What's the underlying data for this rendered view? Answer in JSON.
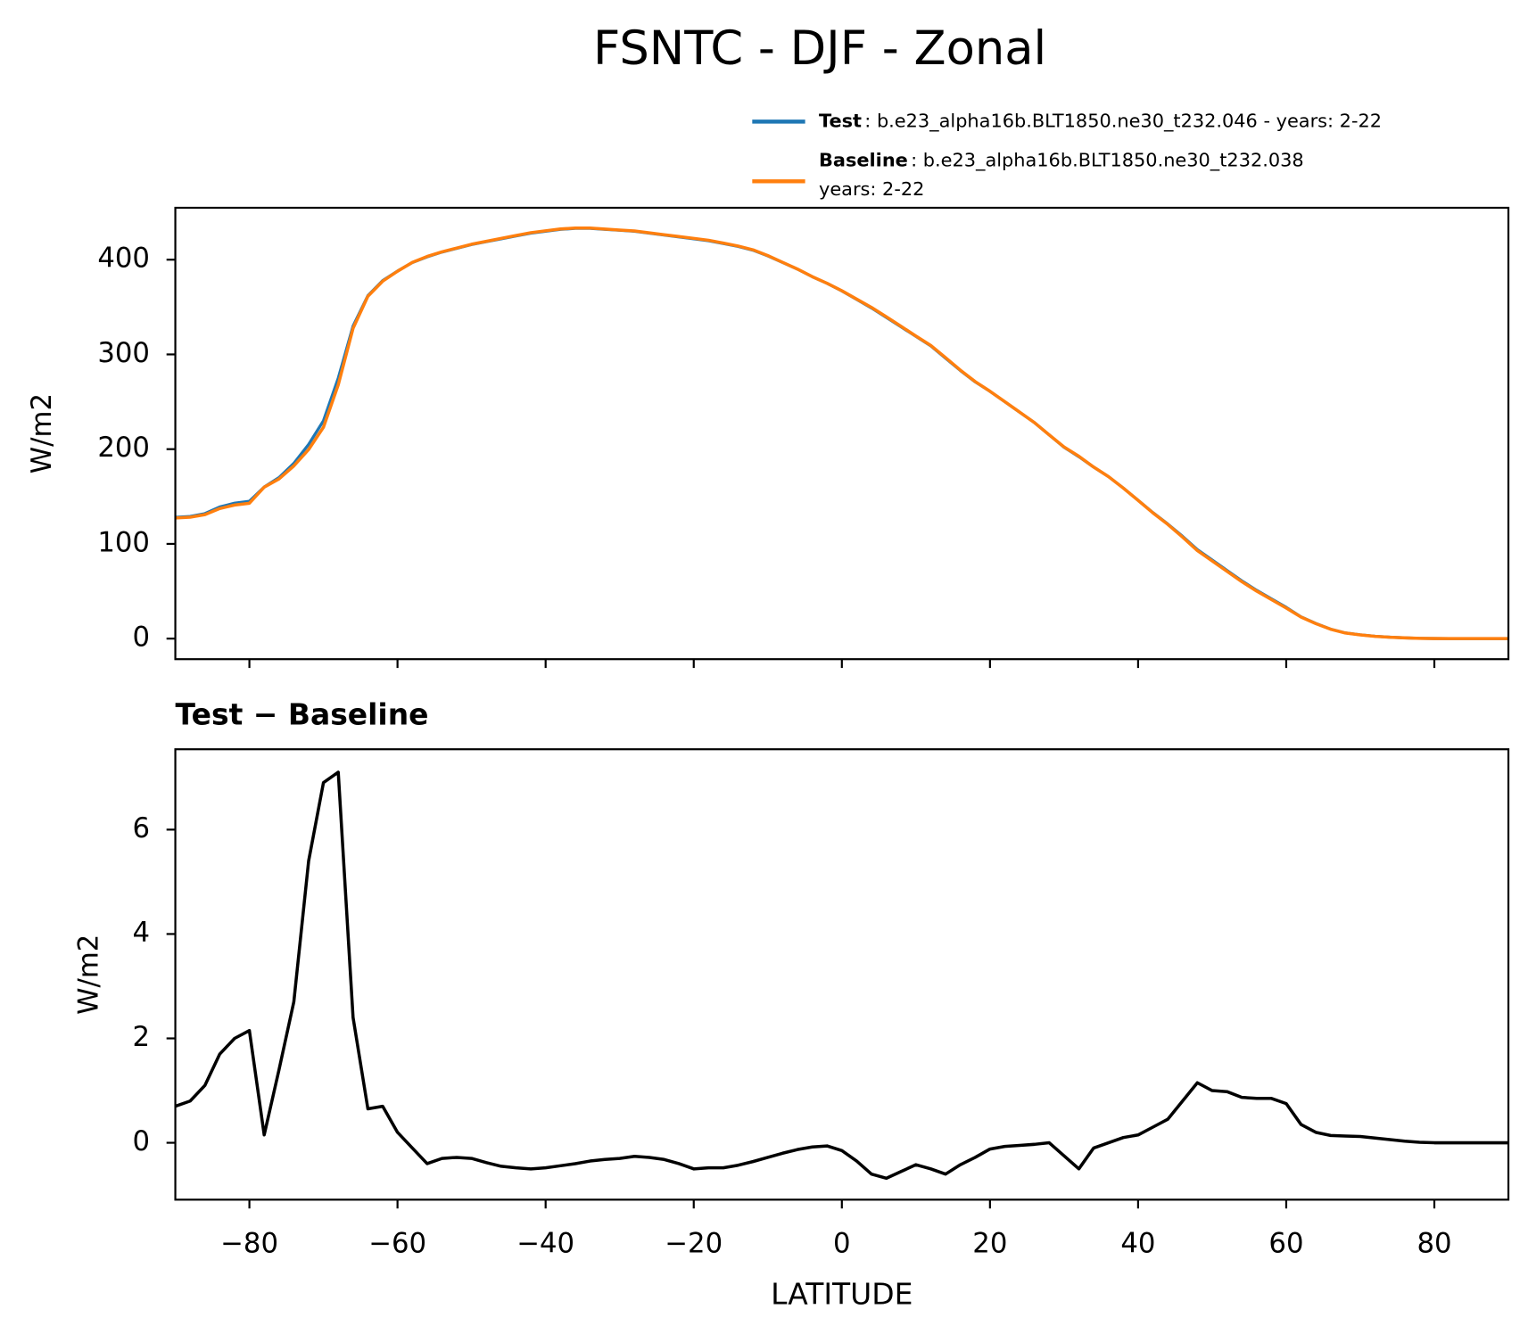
{
  "title": "FSNTC - DJF - Zonal",
  "chart_data": [
    {
      "type": "line",
      "ylabel": "W/m2",
      "x": [
        -90,
        -88,
        -86,
        -84,
        -82,
        -80,
        -78,
        -76,
        -74,
        -72,
        -70,
        -68,
        -66,
        -64,
        -62,
        -60,
        -58,
        -56,
        -54,
        -52,
        -50,
        -48,
        -46,
        -44,
        -42,
        -40,
        -38,
        -36,
        -34,
        -32,
        -30,
        -28,
        -26,
        -24,
        -22,
        -20,
        -18,
        -16,
        -14,
        -12,
        -10,
        -8,
        -6,
        -4,
        -2,
        0,
        2,
        4,
        6,
        8,
        10,
        12,
        14,
        16,
        18,
        20,
        22,
        24,
        26,
        28,
        30,
        32,
        34,
        36,
        38,
        40,
        42,
        44,
        46,
        48,
        50,
        52,
        54,
        56,
        58,
        60,
        62,
        64,
        66,
        68,
        70,
        72,
        74,
        76,
        78,
        80,
        82,
        84,
        86,
        88,
        90
      ],
      "series": [
        {
          "name": "Test",
          "detail": [
            ": b.e23_alpha16b.BLT1850.ne30_t232.046 - years: 2-22"
          ],
          "color": "#1f77b4",
          "values": [
            128,
            129,
            132,
            139,
            143,
            145,
            160,
            170,
            185,
            205,
            230,
            275,
            330,
            362,
            378,
            388,
            397,
            403,
            408,
            412,
            416,
            419,
            422,
            425,
            428,
            430,
            432,
            433,
            433,
            432,
            431,
            430,
            428,
            426,
            424,
            422,
            420,
            417,
            414,
            410,
            404,
            397,
            390,
            382,
            375,
            367,
            358,
            349,
            339,
            329,
            319,
            309,
            296,
            283,
            271,
            261,
            250,
            239,
            228,
            215,
            202,
            192,
            181,
            171,
            159,
            146,
            133,
            121,
            108,
            94,
            83,
            72,
            61,
            51,
            42,
            33,
            23,
            16,
            10,
            6,
            4,
            2.5,
            1.5,
            0.8,
            0.3,
            0.1,
            0,
            0,
            0,
            0,
            0
          ]
        },
        {
          "name": "Baseline",
          "detail": [
            ": b.e23_alpha16b.BLT1850.ne30_t232.038",
            "years: 2-22"
          ],
          "color": "#ff7f0e",
          "values": [
            127.3,
            128.2,
            130.9,
            137.3,
            141.0,
            142.9,
            159.9,
            168.6,
            182.3,
            199.6,
            223.1,
            267.9,
            327.6,
            361.4,
            377.3,
            387.8,
            397.1,
            403.4,
            408.3,
            412.3,
            416.3,
            419.4,
            422.5,
            425.5,
            428.5,
            430.5,
            432.4,
            433.4,
            433.4,
            432.3,
            431.3,
            430.3,
            428.3,
            426.3,
            424.4,
            422.5,
            420.5,
            417.5,
            414.4,
            410.4,
            404.3,
            397.2,
            390.1,
            382.1,
            375.1,
            367.2,
            358.4,
            349.6,
            339.7,
            329.6,
            319.4,
            309.5,
            296.6,
            283.4,
            271.3,
            261.1,
            250.1,
            239.1,
            228.0,
            215.0,
            202.3,
            192.5,
            181.1,
            171.0,
            158.9,
            145.9,
            132.7,
            120.6,
            107.2,
            92.9,
            82.0,
            71.0,
            60.1,
            50.2,
            41.2,
            32.3,
            22.7,
            15.8,
            9.9,
            5.9,
            3.9,
            2.4,
            1.4,
            0.8,
            0.3,
            0.1,
            0,
            0,
            0,
            0,
            0
          ]
        }
      ],
      "xlim": [
        -90,
        90
      ],
      "xticks": [
        -80,
        -60,
        -40,
        -20,
        0,
        20,
        40,
        60,
        80
      ],
      "ylim": [
        -21.7,
        454.8
      ],
      "yticks": [
        0,
        100,
        200,
        300,
        400
      ]
    },
    {
      "type": "line",
      "title": "Test − Baseline",
      "xlabel": "LATITUDE",
      "ylabel": "W/m2",
      "x": [
        -90,
        -88,
        -86,
        -84,
        -82,
        -80,
        -78,
        -76,
        -74,
        -72,
        -70,
        -68,
        -66,
        -64,
        -62,
        -60,
        -58,
        -56,
        -54,
        -52,
        -50,
        -48,
        -46,
        -44,
        -42,
        -40,
        -38,
        -36,
        -34,
        -32,
        -30,
        -28,
        -26,
        -24,
        -22,
        -20,
        -18,
        -16,
        -14,
        -12,
        -10,
        -8,
        -6,
        -4,
        -2,
        0,
        2,
        4,
        6,
        8,
        10,
        12,
        14,
        16,
        18,
        20,
        22,
        24,
        26,
        28,
        30,
        32,
        34,
        36,
        38,
        40,
        42,
        44,
        46,
        48,
        50,
        52,
        54,
        56,
        58,
        60,
        62,
        64,
        66,
        68,
        70,
        72,
        74,
        76,
        78,
        80,
        82,
        84,
        86,
        88,
        90
      ],
      "series": [
        {
          "color": "#000000",
          "values": [
            0.7,
            0.8,
            1.1,
            1.7,
            2.0,
            2.15,
            0.15,
            1.4,
            2.7,
            5.4,
            6.9,
            7.1,
            2.4,
            0.65,
            0.7,
            0.2,
            -0.1,
            -0.4,
            -0.3,
            -0.28,
            -0.3,
            -0.38,
            -0.45,
            -0.48,
            -0.5,
            -0.48,
            -0.44,
            -0.4,
            -0.35,
            -0.32,
            -0.3,
            -0.26,
            -0.28,
            -0.32,
            -0.4,
            -0.5,
            -0.48,
            -0.48,
            -0.43,
            -0.36,
            -0.28,
            -0.2,
            -0.13,
            -0.08,
            -0.06,
            -0.15,
            -0.35,
            -0.6,
            -0.68,
            -0.55,
            -0.42,
            -0.5,
            -0.6,
            -0.42,
            -0.28,
            -0.12,
            -0.07,
            -0.05,
            -0.03,
            0.0,
            -0.25,
            -0.5,
            -0.1,
            0.0,
            0.1,
            0.15,
            0.3,
            0.45,
            0.8,
            1.15,
            1.0,
            0.98,
            0.87,
            0.85,
            0.85,
            0.75,
            0.35,
            0.2,
            0.14,
            0.13,
            0.12,
            0.09,
            0.06,
            0.03,
            0.01,
            0,
            0,
            0,
            0,
            0,
            0
          ]
        }
      ],
      "xlim": [
        -90,
        90
      ],
      "xticks": [
        {
          "value": -80,
          "label": "−80"
        },
        {
          "value": -60,
          "label": "−60"
        },
        {
          "value": -40,
          "label": "−40"
        },
        {
          "value": -20,
          "label": "−20"
        },
        0,
        20,
        40,
        60,
        80
      ],
      "ylim": [
        -1.09,
        7.54
      ],
      "yticks": [
        0,
        2,
        4,
        6
      ]
    }
  ]
}
